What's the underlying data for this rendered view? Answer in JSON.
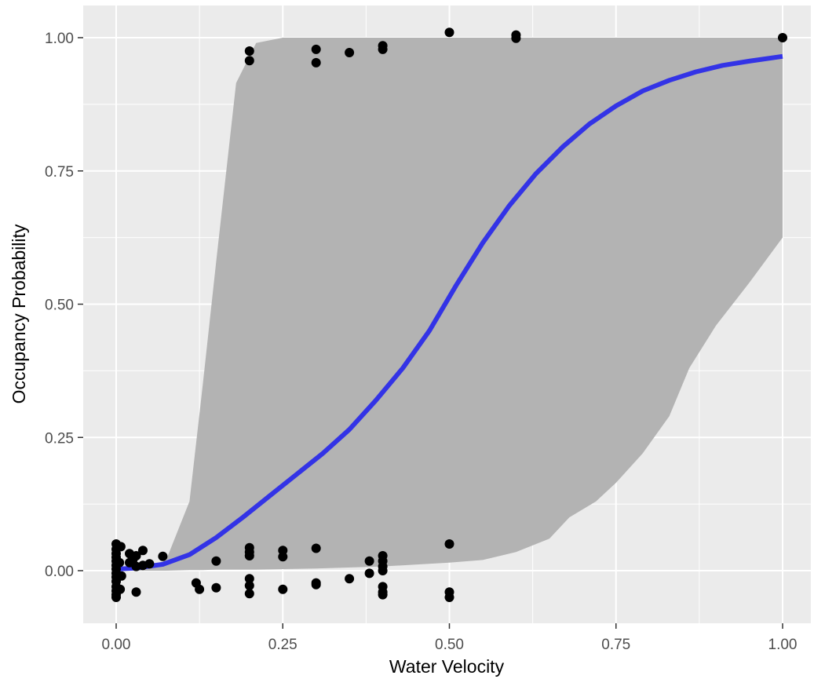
{
  "chart_data": {
    "type": "scatter",
    "title": "",
    "xlabel": "Water Velocity",
    "ylabel": "Occupancy Probability",
    "xlim": [
      -0.1,
      1.02
    ],
    "ylim": [
      -0.105,
      1.05
    ],
    "x_ticks": [
      "0.00",
      "0.25",
      "0.50",
      "0.75",
      "1.00"
    ],
    "y_ticks": [
      "0.00",
      "0.25",
      "0.50",
      "0.75",
      "1.00"
    ],
    "x_tick_values": [
      0,
      0.25,
      0.5,
      0.75,
      1.0
    ],
    "y_tick_values": [
      0,
      0.25,
      0.5,
      0.75,
      1.0
    ],
    "grid": true,
    "colors": {
      "panel_background": "#ebebeb",
      "grid": "#ffffff",
      "ribbon": "#b3b3b3",
      "fit_line": "#3333e6",
      "points": "#000000"
    },
    "fit_line": {
      "x": [
        0,
        0.03,
        0.07,
        0.11,
        0.15,
        0.19,
        0.23,
        0.27,
        0.31,
        0.35,
        0.39,
        0.43,
        0.47,
        0.51,
        0.55,
        0.59,
        0.63,
        0.67,
        0.71,
        0.75,
        0.79,
        0.83,
        0.87,
        0.91,
        0.95,
        1.0
      ],
      "y": [
        0.003,
        0.005,
        0.012,
        0.03,
        0.062,
        0.1,
        0.14,
        0.18,
        0.22,
        0.265,
        0.32,
        0.38,
        0.45,
        0.535,
        0.615,
        0.685,
        0.745,
        0.795,
        0.838,
        0.872,
        0.9,
        0.92,
        0.936,
        0.948,
        0.956,
        0.965
      ]
    },
    "confidence_band": {
      "x": [
        0,
        0.05,
        0.075,
        0.11,
        0.13,
        0.15,
        0.18,
        0.21,
        0.25,
        0.3,
        0.4,
        0.5,
        0.55,
        0.6,
        0.65,
        0.68,
        0.72,
        0.75,
        0.79,
        0.83,
        0.86,
        0.9,
        0.95,
        1.0
      ],
      "lower": [
        0,
        0,
        0,
        0.001,
        0.001,
        0.002,
        0.002,
        0.002,
        0.003,
        0.004,
        0.008,
        0.015,
        0.02,
        0.035,
        0.06,
        0.1,
        0.13,
        0.165,
        0.22,
        0.29,
        0.38,
        0.46,
        0.54,
        0.625
      ],
      "upper": [
        0,
        0.005,
        0.02,
        0.13,
        0.35,
        0.58,
        0.915,
        0.99,
        1.0,
        1.0,
        1.0,
        1.0,
        1.0,
        1.0,
        1.0,
        1.0,
        1.0,
        1.0,
        1.0,
        1.0,
        1.0,
        1.0,
        1.0,
        1.0
      ]
    },
    "points": [
      {
        "x": 0.0,
        "y": 0.05
      },
      {
        "x": 0.0,
        "y": 0.04
      },
      {
        "x": 0.0,
        "y": 0.032
      },
      {
        "x": 0.0,
        "y": 0.025
      },
      {
        "x": 0.0,
        "y": 0.018
      },
      {
        "x": 0.0,
        "y": 0.01
      },
      {
        "x": 0.0,
        "y": 0.003
      },
      {
        "x": 0.0,
        "y": -0.005
      },
      {
        "x": 0.0,
        "y": -0.012
      },
      {
        "x": 0.0,
        "y": -0.02
      },
      {
        "x": 0.0,
        "y": -0.03
      },
      {
        "x": 0.0,
        "y": -0.038
      },
      {
        "x": 0.0,
        "y": -0.045
      },
      {
        "x": 0.0,
        "y": -0.05
      },
      {
        "x": 0.007,
        "y": 0.045
      },
      {
        "x": 0.005,
        "y": 0.015
      },
      {
        "x": 0.008,
        "y": -0.01
      },
      {
        "x": 0.006,
        "y": -0.035
      },
      {
        "x": 0.02,
        "y": 0.032
      },
      {
        "x": 0.02,
        "y": 0.015
      },
      {
        "x": 0.025,
        "y": 0.02
      },
      {
        "x": 0.03,
        "y": 0.028
      },
      {
        "x": 0.03,
        "y": 0.008
      },
      {
        "x": 0.03,
        "y": -0.04
      },
      {
        "x": 0.04,
        "y": 0.038
      },
      {
        "x": 0.04,
        "y": 0.01
      },
      {
        "x": 0.05,
        "y": 0.013
      },
      {
        "x": 0.07,
        "y": 0.027
      },
      {
        "x": 0.12,
        "y": -0.023
      },
      {
        "x": 0.125,
        "y": -0.035
      },
      {
        "x": 0.15,
        "y": 0.018
      },
      {
        "x": 0.15,
        "y": -0.032
      },
      {
        "x": 0.2,
        "y": 0.043
      },
      {
        "x": 0.2,
        "y": 0.035
      },
      {
        "x": 0.2,
        "y": 0.028
      },
      {
        "x": 0.2,
        "y": -0.015
      },
      {
        "x": 0.2,
        "y": -0.028
      },
      {
        "x": 0.2,
        "y": -0.043
      },
      {
        "x": 0.25,
        "y": 0.038
      },
      {
        "x": 0.25,
        "y": 0.026
      },
      {
        "x": 0.25,
        "y": -0.035
      },
      {
        "x": 0.3,
        "y": 0.042
      },
      {
        "x": 0.3,
        "y": -0.023
      },
      {
        "x": 0.3,
        "y": -0.026
      },
      {
        "x": 0.35,
        "y": -0.015
      },
      {
        "x": 0.38,
        "y": 0.018
      },
      {
        "x": 0.38,
        "y": -0.005
      },
      {
        "x": 0.4,
        "y": 0.028
      },
      {
        "x": 0.4,
        "y": 0.018
      },
      {
        "x": 0.4,
        "y": 0.008
      },
      {
        "x": 0.4,
        "y": 0.0
      },
      {
        "x": 0.4,
        "y": -0.03
      },
      {
        "x": 0.4,
        "y": -0.04
      },
      {
        "x": 0.4,
        "y": -0.045
      },
      {
        "x": 0.5,
        "y": 0.05
      },
      {
        "x": 0.5,
        "y": -0.04
      },
      {
        "x": 0.5,
        "y": -0.05
      },
      {
        "x": 0.2,
        "y": 0.975
      },
      {
        "x": 0.2,
        "y": 0.957
      },
      {
        "x": 0.3,
        "y": 0.978
      },
      {
        "x": 0.3,
        "y": 0.953
      },
      {
        "x": 0.35,
        "y": 0.972
      },
      {
        "x": 0.4,
        "y": 0.985
      },
      {
        "x": 0.4,
        "y": 0.978
      },
      {
        "x": 0.5,
        "y": 1.01
      },
      {
        "x": 0.6,
        "y": 1.005
      },
      {
        "x": 0.6,
        "y": 0.999
      },
      {
        "x": 1.0,
        "y": 1.0
      }
    ]
  }
}
